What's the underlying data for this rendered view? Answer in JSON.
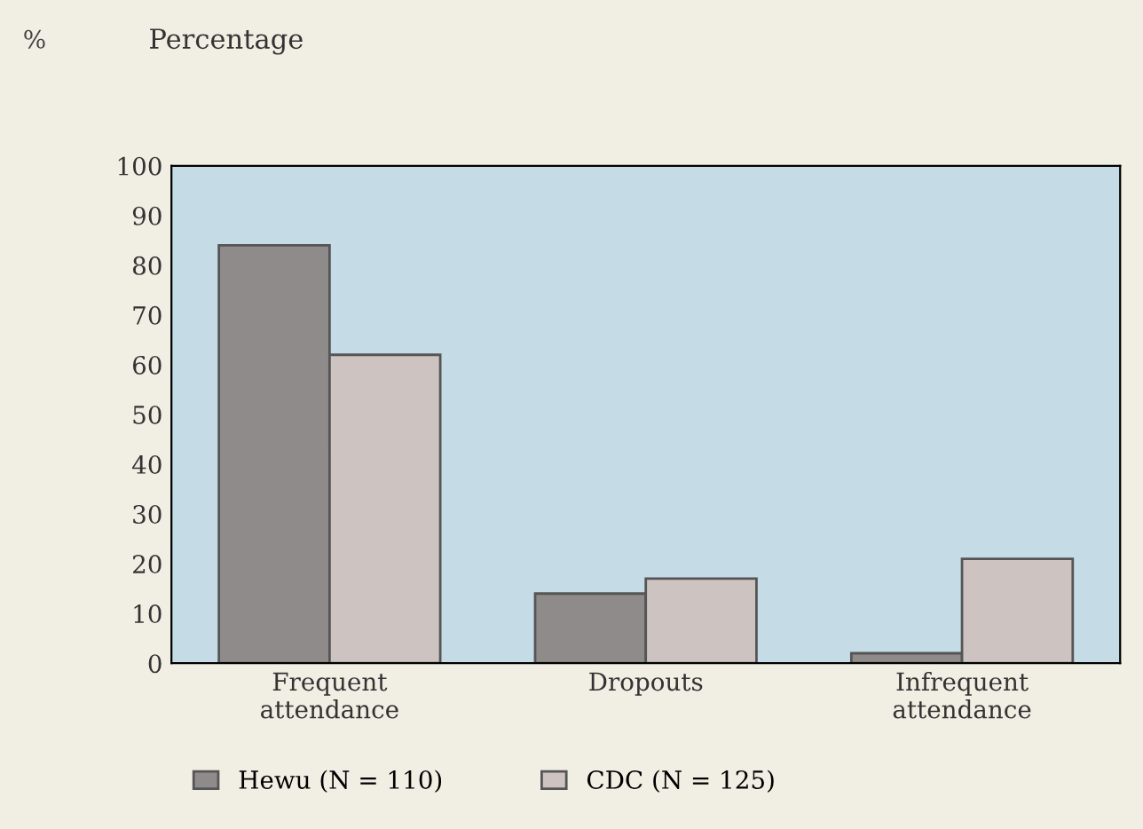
{
  "chart_data": {
    "type": "bar",
    "title": "Percentage",
    "annotations": [
      "%"
    ],
    "categories": [
      "Frequent\nattendance",
      "Dropouts",
      "Infrequent\nattendance"
    ],
    "series": [
      {
        "name": "Hewu (N = 110)",
        "color": "#8f8b8b",
        "values": [
          84,
          14,
          2
        ]
      },
      {
        "name": "CDC (N = 125)",
        "color": "#cdc4c2",
        "values": [
          62,
          17,
          21
        ]
      }
    ],
    "ylim": [
      0,
      100
    ],
    "yticks": [
      0,
      10,
      20,
      30,
      40,
      50,
      60,
      70,
      80,
      90,
      100
    ],
    "grid": false,
    "legend": "bottom"
  }
}
